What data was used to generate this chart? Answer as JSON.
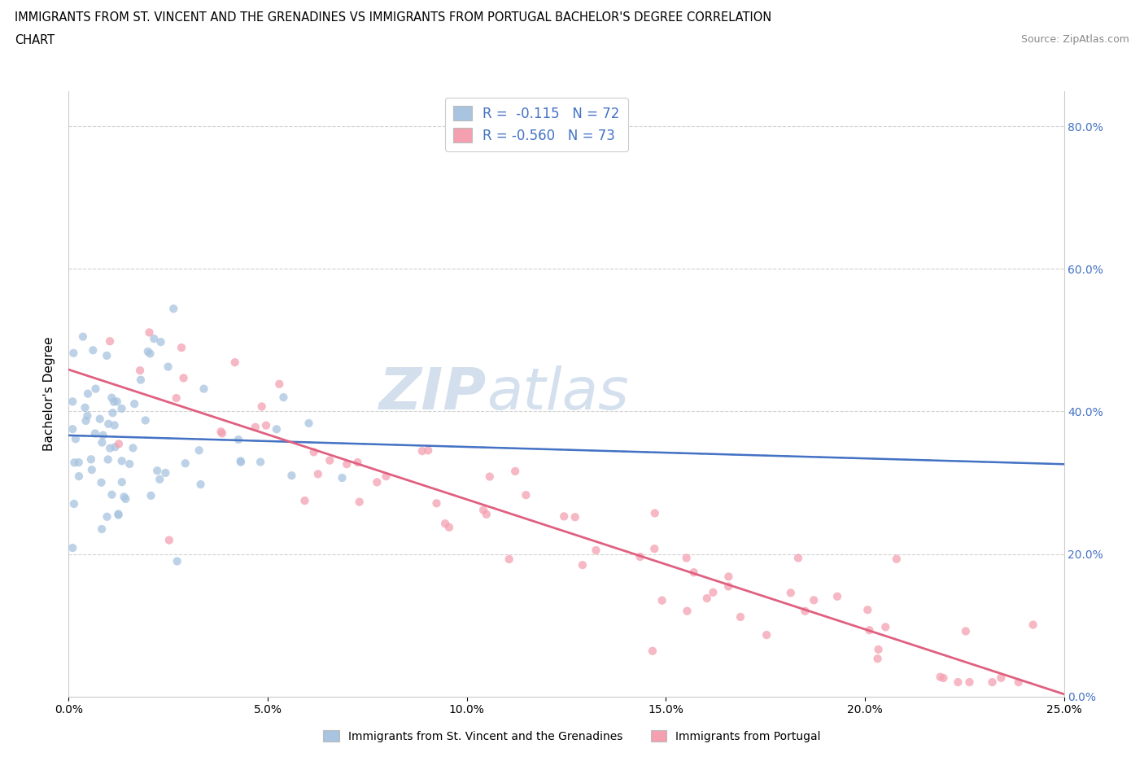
{
  "title_line1": "IMMIGRANTS FROM ST. VINCENT AND THE GRENADINES VS IMMIGRANTS FROM PORTUGAL BACHELOR'S DEGREE CORRELATION",
  "title_line2": "CHART",
  "source": "Source: ZipAtlas.com",
  "ylabel": "Bachelor's Degree",
  "legend_label1": "Immigrants from St. Vincent and the Grenadines",
  "legend_label2": "Immigrants from Portugal",
  "R1": -0.115,
  "N1": 72,
  "R2": -0.56,
  "N2": 73,
  "color1": "#a8c4e0",
  "color2": "#f4a0b0",
  "trendline1_color": "#4472c4",
  "trendline2_color": "#e06080",
  "xlim": [
    0.0,
    0.25
  ],
  "ylim": [
    0.0,
    0.85
  ],
  "xtick_vals": [
    0.0,
    0.05,
    0.1,
    0.15,
    0.2,
    0.25
  ],
  "xtick_labels": [
    "0.0%",
    "5.0%",
    "10.0%",
    "15.0%",
    "20.0%",
    "25.0%"
  ],
  "ytick_vals": [
    0.0,
    0.2,
    0.4,
    0.6,
    0.8
  ],
  "ytick_labels": [
    "0.0%",
    "20.0%",
    "40.0%",
    "60.0%",
    "80.0%"
  ],
  "axis_color": "#4472c4",
  "grid_color": "#cccccc",
  "watermark_zip": "ZIP",
  "watermark_atlas": "atlas",
  "bg_color": "#ffffff"
}
